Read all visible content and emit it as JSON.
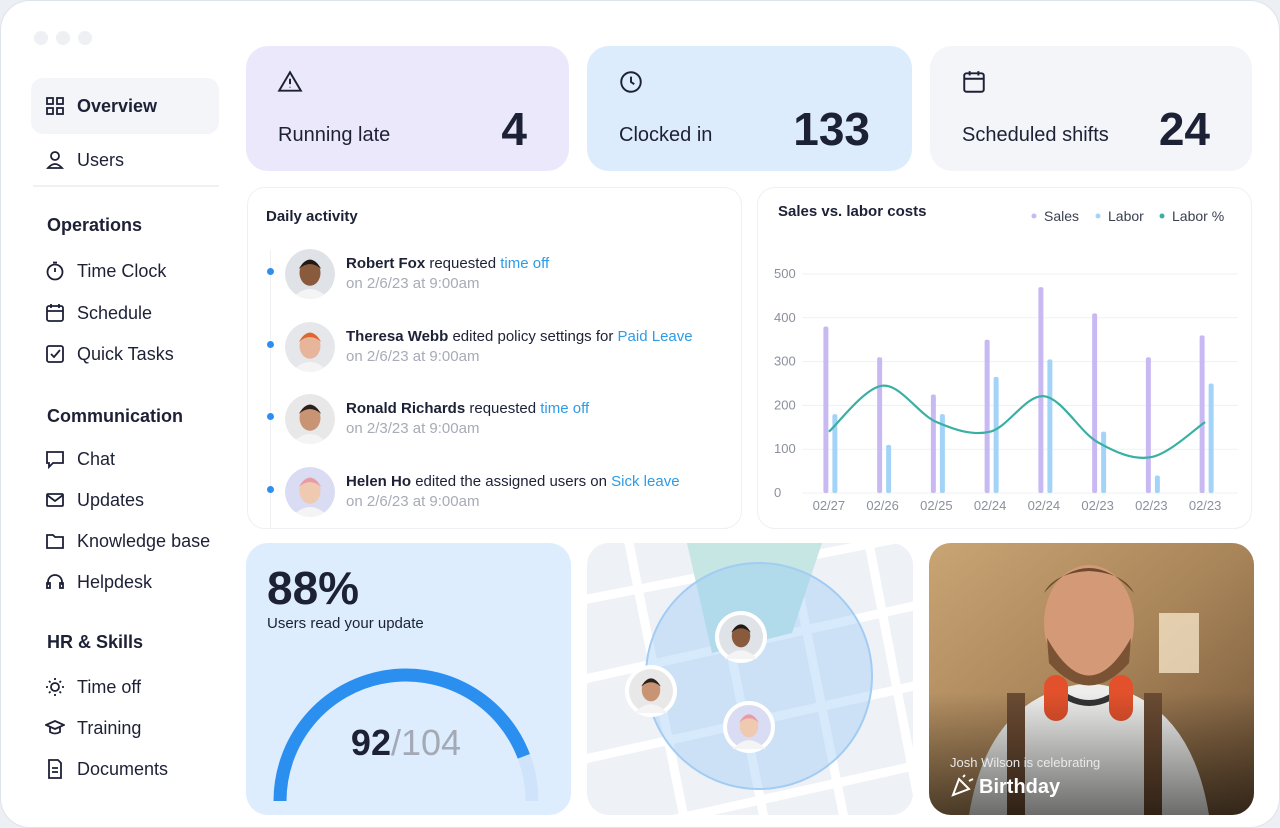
{
  "sidebar": {
    "top": [
      "Overview",
      "Users"
    ],
    "sections": [
      {
        "title": "Operations",
        "items": [
          "Time Clock",
          "Schedule",
          "Quick Tasks"
        ]
      },
      {
        "title": "Communication",
        "items": [
          "Chat",
          "Updates",
          "Knowledge base",
          "Helpdesk"
        ]
      },
      {
        "title": "HR & Skills",
        "items": [
          "Time off",
          "Training",
          "Documents"
        ]
      }
    ]
  },
  "stats": [
    {
      "label": "Running late",
      "value": 4
    },
    {
      "label": "Clocked in",
      "value": 133
    },
    {
      "label": "Scheduled shifts",
      "value": 24
    }
  ],
  "activity": {
    "title": "Daily activity",
    "items": [
      {
        "name": "Robert Fox",
        "action": "requested",
        "link": "time off",
        "time": "on 2/6/23 at 9:00am"
      },
      {
        "name": "Theresa Webb",
        "action": "edited policy settings for",
        "link": "Paid Leave",
        "time": "on 2/6/23 at 9:00am"
      },
      {
        "name": "Ronald Richards",
        "action": "requested",
        "link": "time off",
        "time": "on 2/3/23 at 9:00am"
      },
      {
        "name": "Helen Ho",
        "action": "edited the assigned users on",
        "link": "Sick leave",
        "time": "on 2/6/23 at 9:00am"
      }
    ]
  },
  "sales_chart": {
    "type": "bar",
    "title": "Sales vs. labor costs",
    "categories": [
      "02/27",
      "02/26",
      "02/25",
      "02/24",
      "02/24",
      "02/23",
      "02/23",
      "02/23"
    ],
    "series": [
      {
        "name": "Sales",
        "color": "#c9b9f3",
        "values": [
          380,
          310,
          225,
          350,
          470,
          410,
          310,
          360
        ]
      },
      {
        "name": "Labor",
        "color": "#a3d4f7",
        "values": [
          180,
          110,
          180,
          265,
          305,
          140,
          40,
          250
        ]
      },
      {
        "name": "Labor %",
        "type": "line",
        "color": "#3aafa3",
        "values": [
          140,
          245,
          162,
          140,
          221,
          116,
          82,
          162
        ]
      }
    ],
    "ylim": [
      0,
      500
    ],
    "yticks": [
      0,
      100,
      200,
      300,
      400,
      500
    ],
    "grid": true
  },
  "update_card": {
    "headline": "88%",
    "caption": "Users read your update",
    "gauge": {
      "value": 92,
      "separator": "/",
      "total": 104
    }
  },
  "birthday": {
    "caption": "Josh Wilson is celebrating",
    "event": "Birthday"
  }
}
